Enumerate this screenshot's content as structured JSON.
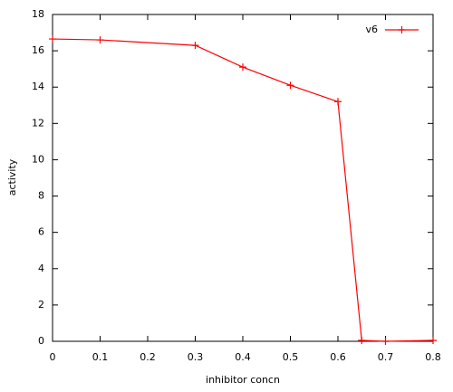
{
  "chart_data": {
    "type": "line",
    "x_label": "inhibitor concn",
    "y_label": "activity",
    "x": [
      0,
      0.1,
      0.3,
      0.4,
      0.5,
      0.6,
      0.65,
      0.7,
      0.8
    ],
    "series": [
      {
        "name": "v6",
        "color": "#ff0000",
        "values": [
          16.65,
          16.6,
          16.3,
          15.1,
          14.1,
          13.2,
          0.05,
          0,
          0.05
        ]
      }
    ],
    "xlim": [
      0,
      0.8
    ],
    "xticks": [
      0,
      0.1,
      0.2,
      0.3,
      0.4,
      0.5,
      0.6,
      0.7,
      0.8
    ],
    "ylim": [
      0,
      18
    ],
    "yticks": [
      0,
      2,
      4,
      6,
      8,
      10,
      12,
      14,
      16,
      18
    ],
    "grid": false,
    "legend": "top-right"
  }
}
